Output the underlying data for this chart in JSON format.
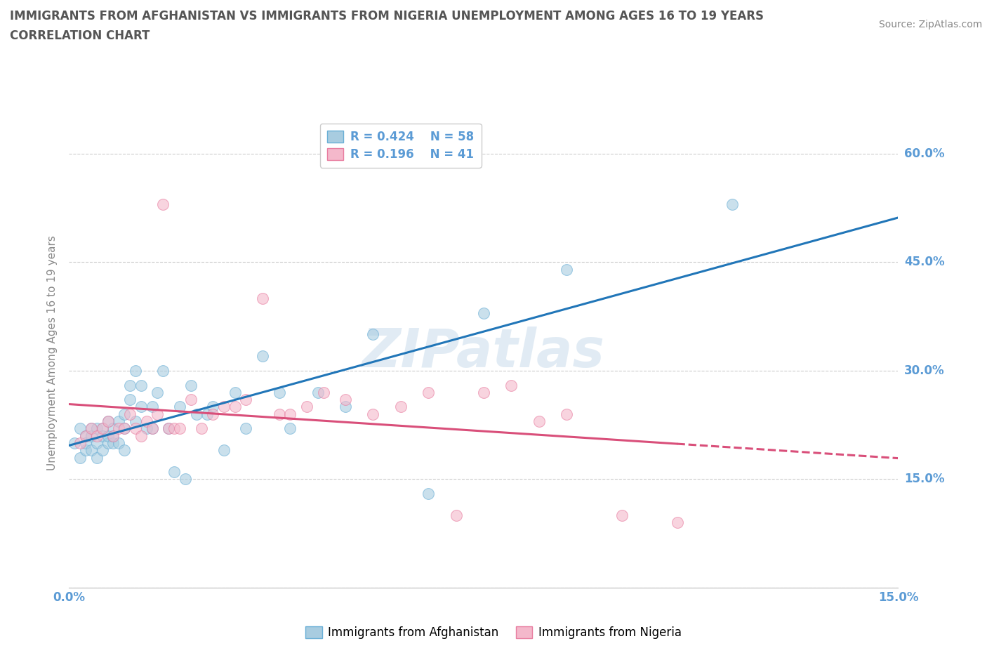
{
  "title_line1": "IMMIGRANTS FROM AFGHANISTAN VS IMMIGRANTS FROM NIGERIA UNEMPLOYMENT AMONG AGES 16 TO 19 YEARS",
  "title_line2": "CORRELATION CHART",
  "source": "Source: ZipAtlas.com",
  "ylabel": "Unemployment Among Ages 16 to 19 years",
  "watermark": "ZIPatlas",
  "xmin": 0.0,
  "xmax": 0.15,
  "ymin": 0.0,
  "ymax": 0.65,
  "ytick_values": [
    0.0,
    0.15,
    0.3,
    0.45,
    0.6
  ],
  "xtick_values": [
    0.0,
    0.15
  ],
  "right_ytick_labels": [
    "60.0%",
    "45.0%",
    "30.0%",
    "15.0%"
  ],
  "right_ytick_values": [
    0.6,
    0.45,
    0.3,
    0.15
  ],
  "afghanistan_R": 0.424,
  "afghanistan_N": 58,
  "nigeria_R": 0.196,
  "nigeria_N": 41,
  "afghanistan_color": "#a8cce0",
  "nigeria_color": "#f4b8cb",
  "afghanistan_edge_color": "#6aafd6",
  "nigeria_edge_color": "#e87da0",
  "afghanistan_line_color": "#2176b8",
  "nigeria_line_color": "#d94f7a",
  "grid_color": "#cccccc",
  "title_color": "#555555",
  "tick_label_color": "#5b9bd5",
  "legend_text_color": "#5b9bd5",
  "ylabel_color": "#888888",
  "source_color": "#888888",
  "afghanistan_x": [
    0.001,
    0.002,
    0.002,
    0.003,
    0.003,
    0.003,
    0.004,
    0.004,
    0.004,
    0.005,
    0.005,
    0.005,
    0.006,
    0.006,
    0.006,
    0.007,
    0.007,
    0.007,
    0.008,
    0.008,
    0.008,
    0.009,
    0.009,
    0.01,
    0.01,
    0.01,
    0.011,
    0.011,
    0.012,
    0.012,
    0.013,
    0.013,
    0.014,
    0.015,
    0.015,
    0.016,
    0.017,
    0.018,
    0.019,
    0.02,
    0.021,
    0.022,
    0.023,
    0.025,
    0.026,
    0.028,
    0.03,
    0.032,
    0.035,
    0.038,
    0.04,
    0.045,
    0.05,
    0.055,
    0.065,
    0.075,
    0.09,
    0.12
  ],
  "afghanistan_y": [
    0.2,
    0.18,
    0.22,
    0.19,
    0.21,
    0.2,
    0.22,
    0.19,
    0.21,
    0.2,
    0.22,
    0.18,
    0.22,
    0.19,
    0.21,
    0.2,
    0.23,
    0.21,
    0.22,
    0.2,
    0.21,
    0.23,
    0.2,
    0.22,
    0.24,
    0.19,
    0.28,
    0.26,
    0.23,
    0.3,
    0.25,
    0.28,
    0.22,
    0.22,
    0.25,
    0.27,
    0.3,
    0.22,
    0.16,
    0.25,
    0.15,
    0.28,
    0.24,
    0.24,
    0.25,
    0.19,
    0.27,
    0.22,
    0.32,
    0.27,
    0.22,
    0.27,
    0.25,
    0.35,
    0.13,
    0.38,
    0.44,
    0.53
  ],
  "nigeria_x": [
    0.002,
    0.003,
    0.004,
    0.005,
    0.006,
    0.007,
    0.008,
    0.009,
    0.01,
    0.011,
    0.012,
    0.013,
    0.014,
    0.015,
    0.016,
    0.017,
    0.018,
    0.019,
    0.02,
    0.022,
    0.024,
    0.026,
    0.028,
    0.03,
    0.032,
    0.035,
    0.038,
    0.04,
    0.043,
    0.046,
    0.05,
    0.055,
    0.06,
    0.065,
    0.07,
    0.075,
    0.08,
    0.085,
    0.09,
    0.1,
    0.11
  ],
  "nigeria_y": [
    0.2,
    0.21,
    0.22,
    0.21,
    0.22,
    0.23,
    0.21,
    0.22,
    0.22,
    0.24,
    0.22,
    0.21,
    0.23,
    0.22,
    0.24,
    0.53,
    0.22,
    0.22,
    0.22,
    0.26,
    0.22,
    0.24,
    0.25,
    0.25,
    0.26,
    0.4,
    0.24,
    0.24,
    0.25,
    0.27,
    0.26,
    0.24,
    0.25,
    0.27,
    0.1,
    0.27,
    0.28,
    0.23,
    0.24,
    0.1,
    0.09
  ],
  "marker_size": 130,
  "marker_alpha": 0.6,
  "line_width": 2.2,
  "background_color": "#ffffff"
}
